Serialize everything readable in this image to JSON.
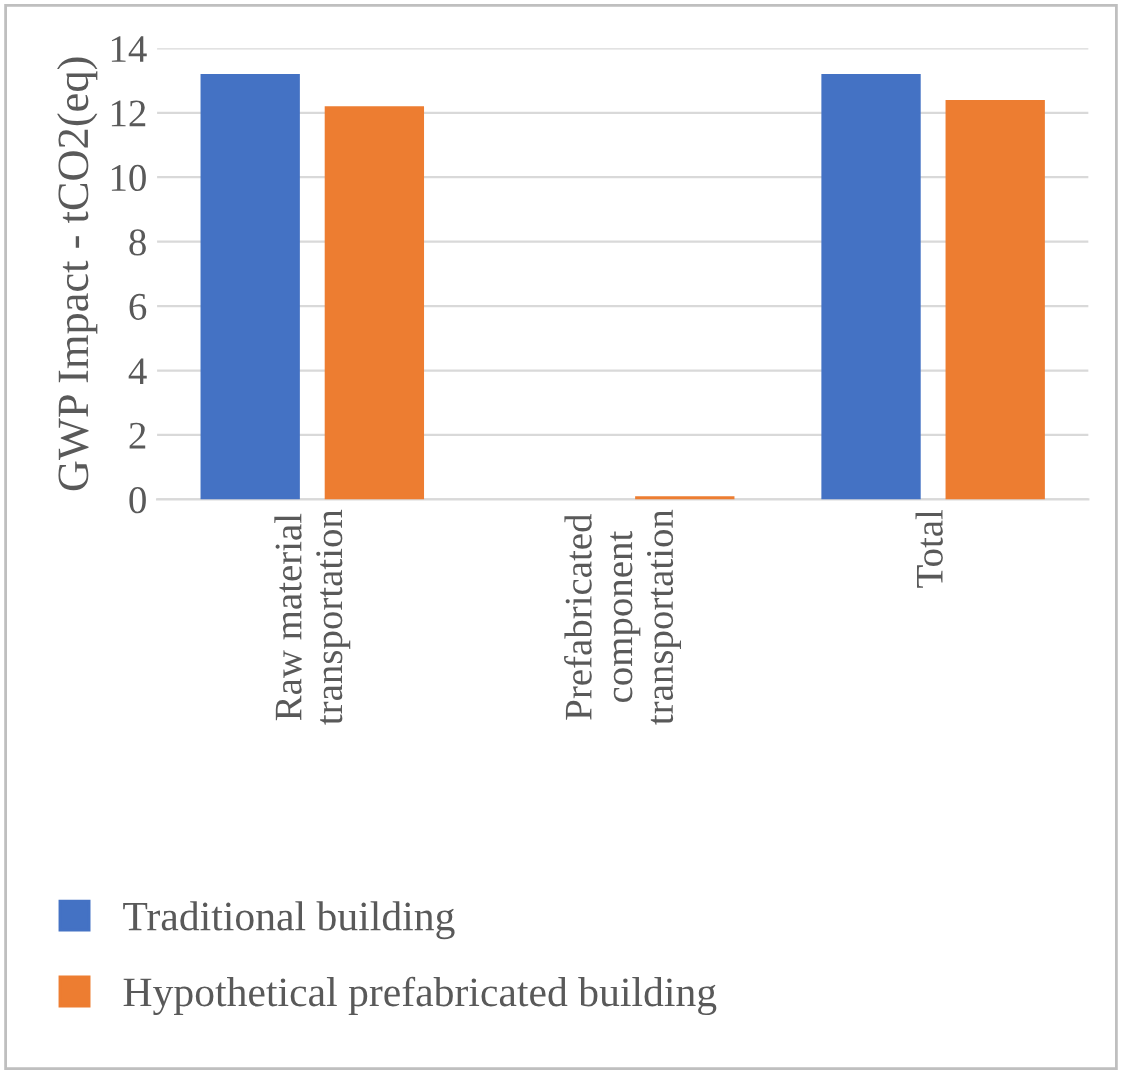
{
  "chart_data": {
    "type": "bar",
    "ylabel": "GWP Impact - tCO2(eq)",
    "categories": [
      "Raw material\ntransportation",
      "Prefabricated\ncomponent\ntransportation",
      "Total"
    ],
    "series": [
      {
        "name": "Traditional building",
        "color": "#4472c4",
        "values": [
          13.2,
          0,
          13.2
        ]
      },
      {
        "name": "Hypothetical prefabricated building",
        "color": "#ed7d31",
        "values": [
          12.2,
          0.1,
          12.4
        ]
      }
    ],
    "ylim": [
      0,
      14
    ],
    "yticks": [
      0,
      2,
      4,
      6,
      8,
      10,
      12,
      14
    ],
    "grid": "y",
    "legend": "bottom"
  }
}
